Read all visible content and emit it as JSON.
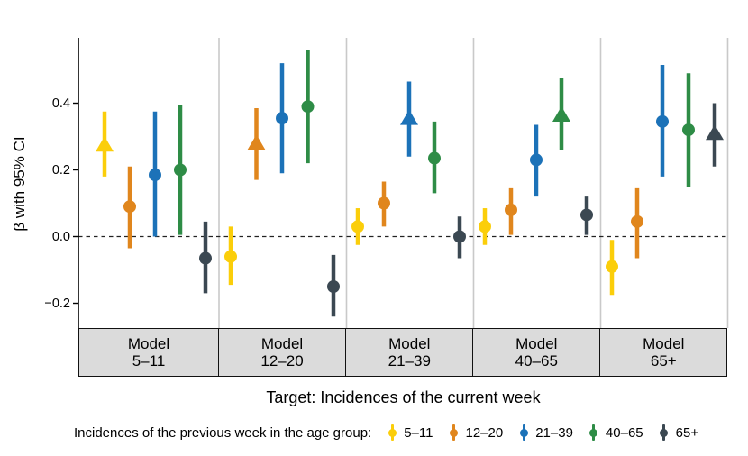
{
  "colors": {
    "axis": "#000000",
    "panel_separator": "#C9C9C9",
    "strip_background": "#DBDBDB",
    "zero_line": "#222222"
  },
  "chart_data": {
    "type": "pointrange",
    "ylabel": "β with 95% CI",
    "xlabel": "Target: Incidences of the current week",
    "ylim": [
      -0.28,
      0.6
    ],
    "grid": false,
    "zero_line": 0.0,
    "yticks": [
      {
        "value": 0.4,
        "label": "0.4"
      },
      {
        "value": 0.2,
        "label": "0.2"
      },
      {
        "value": 0.0,
        "label": "0.0"
      },
      {
        "value": -0.2,
        "label": "−0.2"
      }
    ],
    "groups": [
      {
        "name": "5–11",
        "color": "#FBCE0A"
      },
      {
        "name": "12–20",
        "color": "#E0861D"
      },
      {
        "name": "21–39",
        "color": "#1C72B8"
      },
      {
        "name": "40–65",
        "color": "#2E8C46"
      },
      {
        "name": "65+",
        "color": "#3B4852"
      }
    ],
    "panels": [
      {
        "strip_line1": "Model",
        "strip_line2": "5–11",
        "points": [
          {
            "group": "5–11",
            "shape": "triangle",
            "estimate": 0.275,
            "lower": 0.18,
            "upper": 0.375
          },
          {
            "group": "12–20",
            "shape": "circle",
            "estimate": 0.09,
            "lower": -0.035,
            "upper": 0.21
          },
          {
            "group": "21–39",
            "shape": "circle",
            "estimate": 0.185,
            "lower": 0.0,
            "upper": 0.375
          },
          {
            "group": "40–65",
            "shape": "circle",
            "estimate": 0.2,
            "lower": 0.005,
            "upper": 0.395
          },
          {
            "group": "65+",
            "shape": "circle",
            "estimate": -0.065,
            "lower": -0.17,
            "upper": 0.045
          }
        ]
      },
      {
        "strip_line1": "Model",
        "strip_line2": "12–20",
        "points": [
          {
            "group": "5–11",
            "shape": "circle",
            "estimate": -0.06,
            "lower": -0.145,
            "upper": 0.03
          },
          {
            "group": "12–20",
            "shape": "triangle",
            "estimate": 0.28,
            "lower": 0.17,
            "upper": 0.385
          },
          {
            "group": "21–39",
            "shape": "circle",
            "estimate": 0.355,
            "lower": 0.19,
            "upper": 0.52
          },
          {
            "group": "40–65",
            "shape": "circle",
            "estimate": 0.39,
            "lower": 0.22,
            "upper": 0.56
          },
          {
            "group": "65+",
            "shape": "circle",
            "estimate": -0.15,
            "lower": -0.24,
            "upper": -0.055
          }
        ]
      },
      {
        "strip_line1": "Model",
        "strip_line2": "21–39",
        "points": [
          {
            "group": "5–11",
            "shape": "circle",
            "estimate": 0.03,
            "lower": -0.025,
            "upper": 0.085
          },
          {
            "group": "12–20",
            "shape": "circle",
            "estimate": 0.1,
            "lower": 0.03,
            "upper": 0.165
          },
          {
            "group": "21–39",
            "shape": "triangle",
            "estimate": 0.355,
            "lower": 0.24,
            "upper": 0.465
          },
          {
            "group": "40–65",
            "shape": "circle",
            "estimate": 0.235,
            "lower": 0.13,
            "upper": 0.345
          },
          {
            "group": "65+",
            "shape": "circle",
            "estimate": 0.0,
            "lower": -0.065,
            "upper": 0.06
          }
        ]
      },
      {
        "strip_line1": "Model",
        "strip_line2": "40–65",
        "points": [
          {
            "group": "5–11",
            "shape": "circle",
            "estimate": 0.03,
            "lower": -0.025,
            "upper": 0.085
          },
          {
            "group": "12–20",
            "shape": "circle",
            "estimate": 0.08,
            "lower": 0.005,
            "upper": 0.145
          },
          {
            "group": "21–39",
            "shape": "circle",
            "estimate": 0.23,
            "lower": 0.12,
            "upper": 0.335
          },
          {
            "group": "40–65",
            "shape": "triangle",
            "estimate": 0.365,
            "lower": 0.26,
            "upper": 0.475
          },
          {
            "group": "65+",
            "shape": "circle",
            "estimate": 0.065,
            "lower": 0.005,
            "upper": 0.12
          }
        ]
      },
      {
        "strip_line1": "Model",
        "strip_line2": "65+",
        "points": [
          {
            "group": "5–11",
            "shape": "circle",
            "estimate": -0.09,
            "lower": -0.175,
            "upper": -0.01
          },
          {
            "group": "12–20",
            "shape": "circle",
            "estimate": 0.045,
            "lower": -0.065,
            "upper": 0.145
          },
          {
            "group": "21–39",
            "shape": "circle",
            "estimate": 0.345,
            "lower": 0.18,
            "upper": 0.515
          },
          {
            "group": "40–65",
            "shape": "circle",
            "estimate": 0.32,
            "lower": 0.15,
            "upper": 0.49
          },
          {
            "group": "65+",
            "shape": "triangle",
            "estimate": 0.31,
            "lower": 0.21,
            "upper": 0.4
          }
        ]
      }
    ],
    "legend": {
      "title": "Incidences of the previous week in the age group:",
      "position": "bottom",
      "items": [
        {
          "label": "5–11",
          "color": "#FBCE0A"
        },
        {
          "label": "12–20",
          "color": "#E0861D"
        },
        {
          "label": "21–39",
          "color": "#1C72B8"
        },
        {
          "label": "40–65",
          "color": "#2E8C46"
        },
        {
          "label": "65+",
          "color": "#3B4852"
        }
      ]
    }
  }
}
